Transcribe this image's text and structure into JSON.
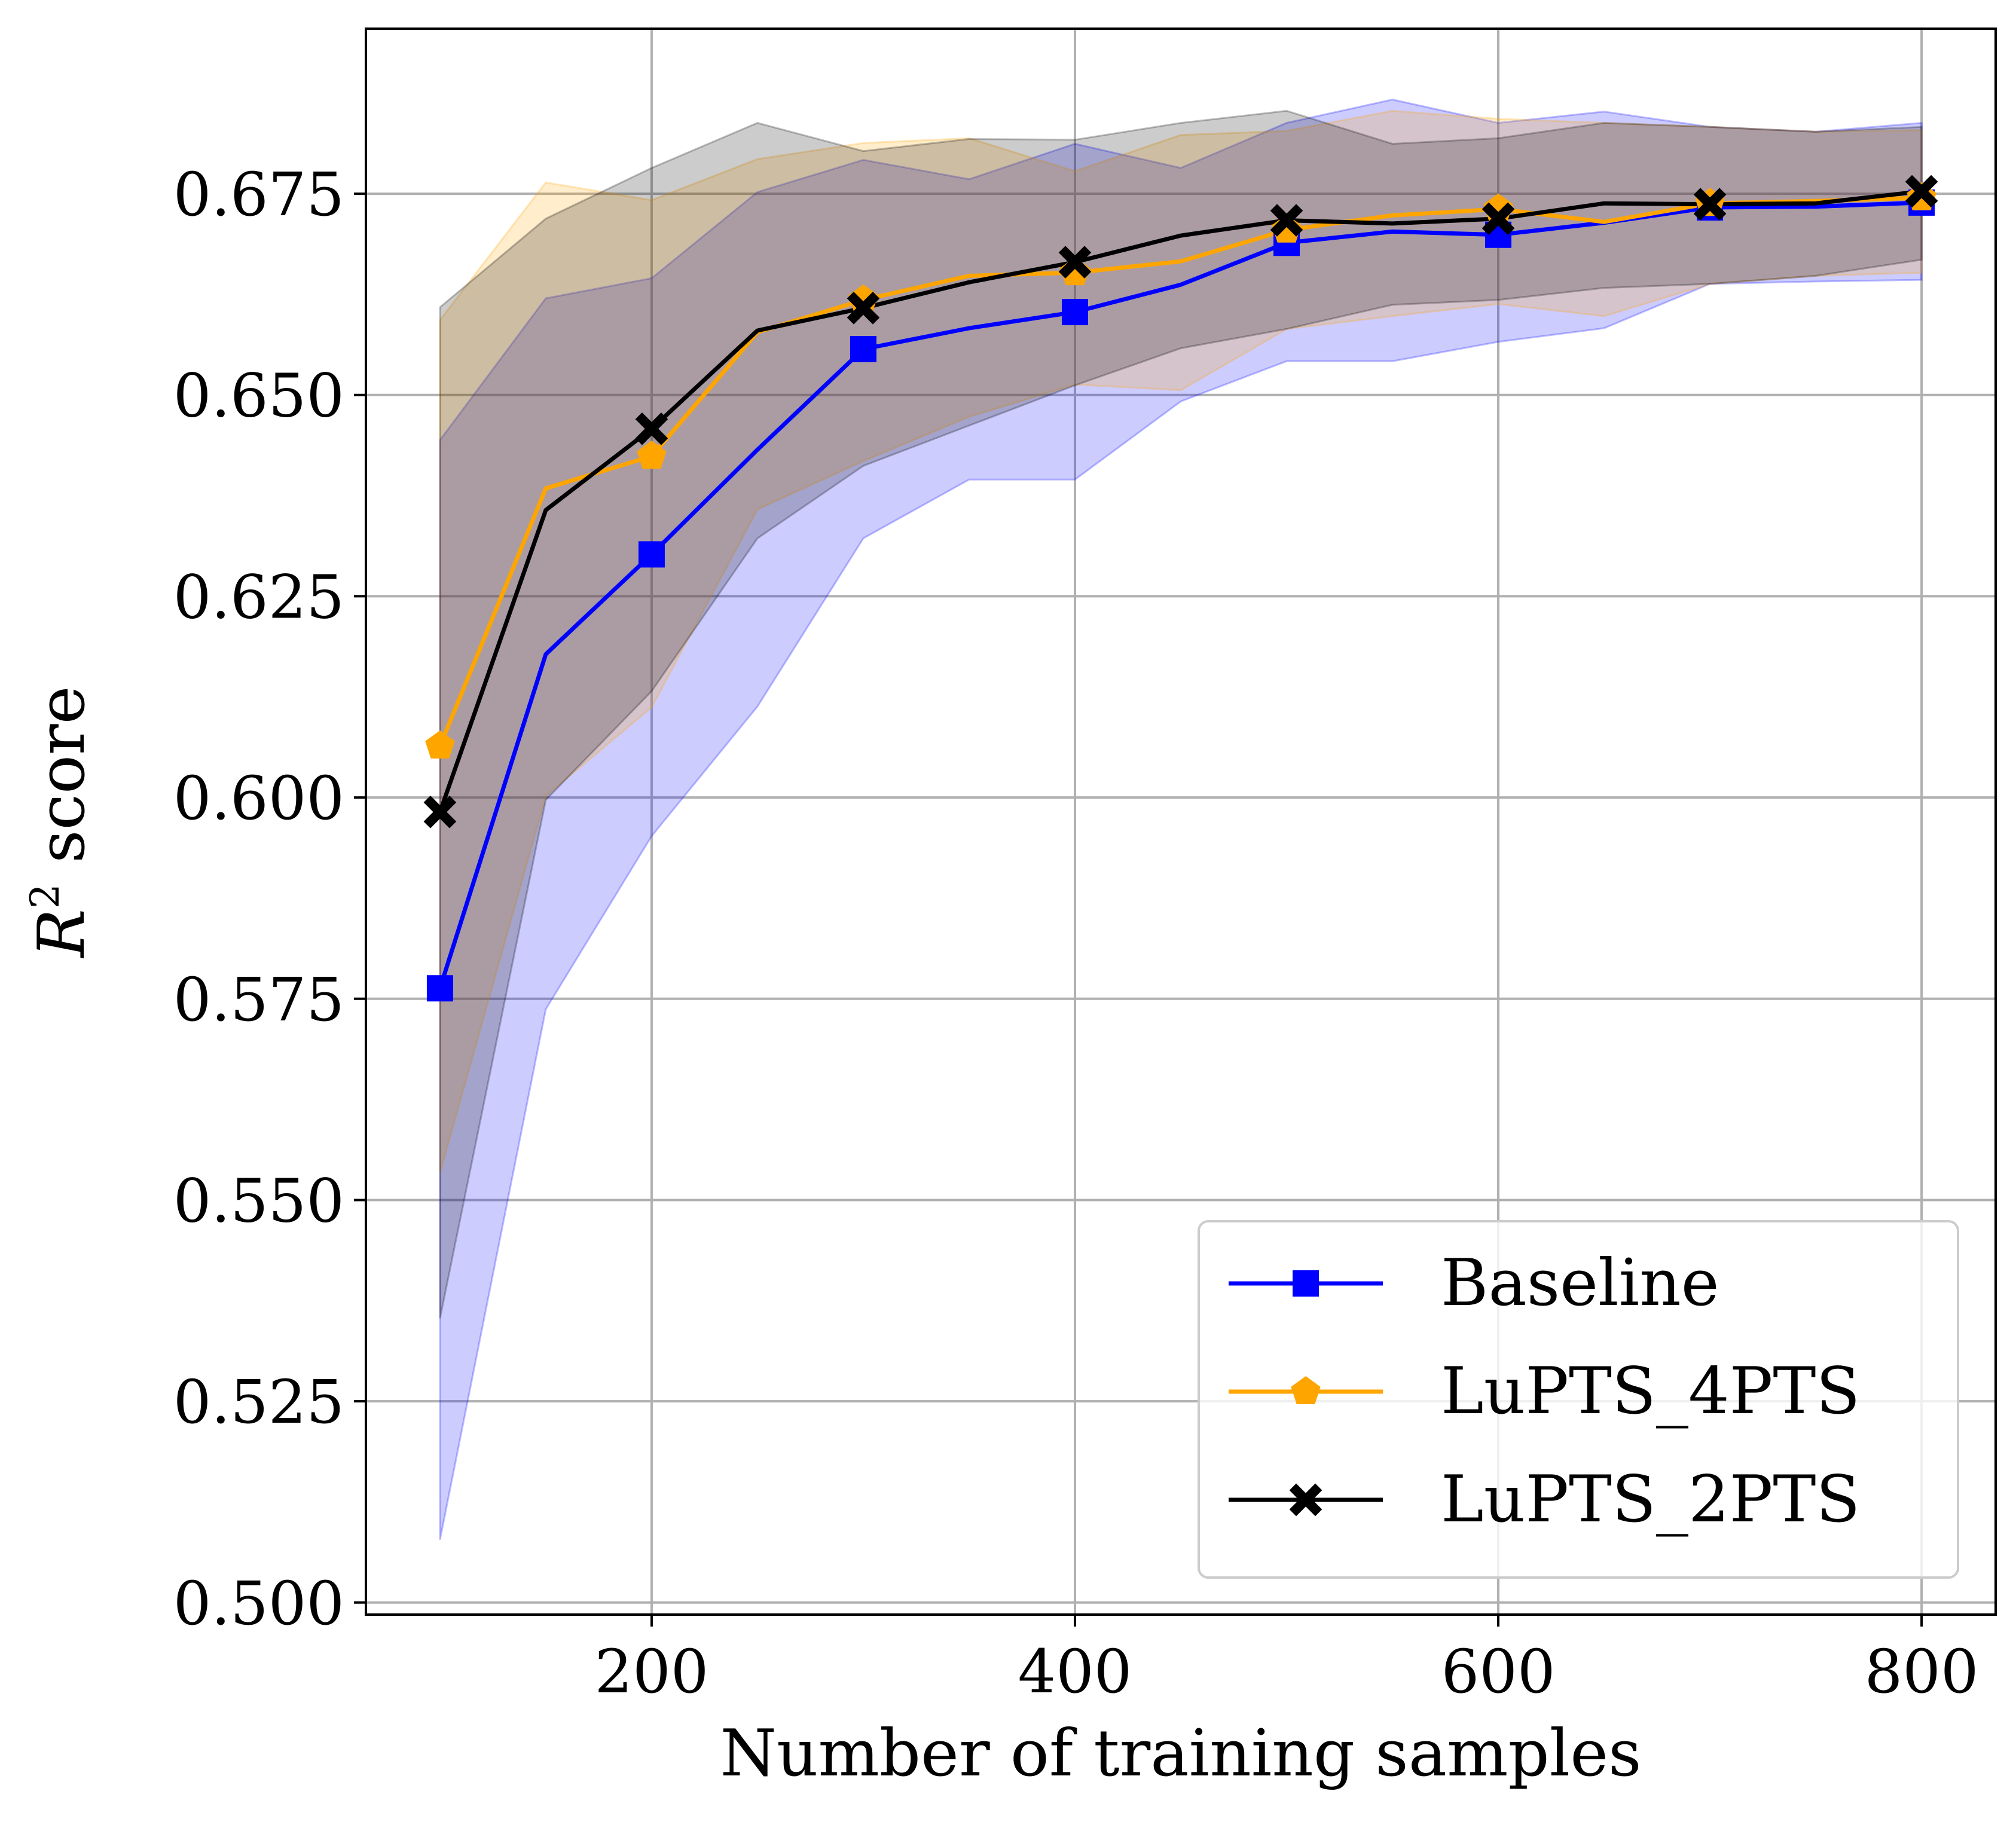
{
  "chart_data": {
    "type": "line",
    "xlabel": "Number of training samples",
    "ylabel_main": "R",
    "ylabel_sup": "2",
    "ylabel_rest": " score",
    "xlim": [
      65,
      835
    ],
    "ylim": [
      0.4985,
      0.6955
    ],
    "xticks": [
      200,
      400,
      600,
      800
    ],
    "xtick_labels": [
      "200",
      "400",
      "600",
      "800"
    ],
    "yticks": [
      0.5,
      0.525,
      0.55,
      0.575,
      0.6,
      0.625,
      0.65,
      0.675
    ],
    "ytick_labels": [
      "0.500",
      "0.525",
      "0.550",
      "0.575",
      "0.600",
      "0.625",
      "0.650",
      "0.675"
    ],
    "grid": true,
    "legend_position": "bottom-right",
    "series": [
      {
        "name": "Baseline",
        "color": "#0000ff",
        "marker": "square",
        "marker_x": [
          100,
          200,
          300,
          400,
          500,
          600,
          700,
          800
        ],
        "x": [
          100,
          150,
          200,
          250,
          300,
          350,
          400,
          450,
          500,
          550,
          600,
          650,
          700,
          750,
          800
        ],
        "y": [
          0.5763,
          0.6178,
          0.6302,
          0.6432,
          0.6557,
          0.6583,
          0.6603,
          0.6637,
          0.6689,
          0.6703,
          0.6699,
          0.6714,
          0.6733,
          0.6734,
          0.6739
        ],
        "upper": [
          0.6444,
          0.662,
          0.6645,
          0.6752,
          0.6792,
          0.6768,
          0.6812,
          0.6782,
          0.6838,
          0.6867,
          0.6838,
          0.6852,
          0.6833,
          0.6827,
          0.6838
        ],
        "lower": [
          0.5078,
          0.5737,
          0.5952,
          0.6113,
          0.6322,
          0.6395,
          0.6395,
          0.6492,
          0.6542,
          0.6542,
          0.6566,
          0.6583,
          0.6638,
          0.6641,
          0.6643
        ]
      },
      {
        "name": "LuPTS_4PTS",
        "color": "#ffa500",
        "marker": "pentagon",
        "marker_x": [
          100,
          200,
          300,
          400,
          500,
          600,
          700,
          800
        ],
        "x": [
          100,
          150,
          200,
          250,
          300,
          350,
          400,
          450,
          500,
          550,
          600,
          650,
          700,
          750,
          800
        ],
        "y": [
          0.6064,
          0.6384,
          0.6424,
          0.6578,
          0.6618,
          0.6648,
          0.6652,
          0.6666,
          0.6705,
          0.6723,
          0.6731,
          0.6715,
          0.6738,
          0.6741,
          0.6745
        ],
        "upper": [
          0.6593,
          0.6764,
          0.6742,
          0.6793,
          0.6813,
          0.6819,
          0.6778,
          0.6823,
          0.6828,
          0.6853,
          0.6843,
          0.6838,
          0.6833,
          0.6827,
          0.6829
        ],
        "lower": [
          0.5534,
          0.6002,
          0.6112,
          0.6358,
          0.6418,
          0.6473,
          0.6513,
          0.6506,
          0.6582,
          0.6598,
          0.6613,
          0.6598,
          0.6638,
          0.6648,
          0.6652
        ]
      },
      {
        "name": "LuPTS_2PTS",
        "color": "#000000",
        "marker": "x",
        "marker_x": [
          100,
          200,
          300,
          400,
          500,
          600,
          700,
          800
        ],
        "x": [
          100,
          150,
          200,
          250,
          300,
          350,
          400,
          450,
          500,
          550,
          600,
          650,
          700,
          750,
          800
        ],
        "y": [
          0.5982,
          0.6357,
          0.6458,
          0.658,
          0.6608,
          0.664,
          0.6665,
          0.6698,
          0.6717,
          0.6713,
          0.6719,
          0.6738,
          0.6737,
          0.6738,
          0.6753
        ],
        "upper": [
          0.6609,
          0.6719,
          0.6782,
          0.6838,
          0.6803,
          0.6818,
          0.6817,
          0.6838,
          0.6853,
          0.6812,
          0.6819,
          0.6838,
          0.6833,
          0.6827,
          0.6833
        ],
        "lower": [
          0.5353,
          0.5997,
          0.6132,
          0.6322,
          0.6412,
          0.6462,
          0.6512,
          0.6558,
          0.6582,
          0.6612,
          0.6618,
          0.6633,
          0.6638,
          0.6648,
          0.6668
        ]
      }
    ]
  }
}
